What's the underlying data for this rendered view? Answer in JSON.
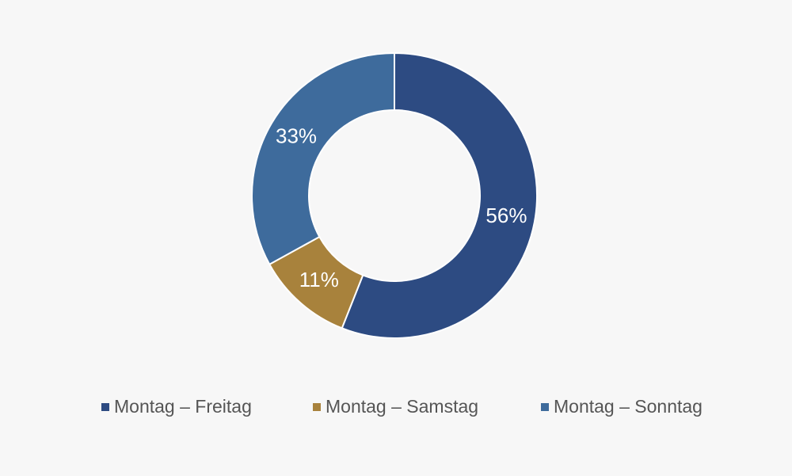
{
  "chart_data": {
    "type": "donut",
    "categories": [
      "Montag – Freitag",
      "Montag – Samstag",
      "Montag – Sonntag"
    ],
    "values": [
      56,
      11,
      33
    ],
    "value_labels": [
      "56%",
      "11%",
      "33%"
    ],
    "colors": [
      "#2d4b82",
      "#a8823c",
      "#3e6b9c"
    ]
  }
}
